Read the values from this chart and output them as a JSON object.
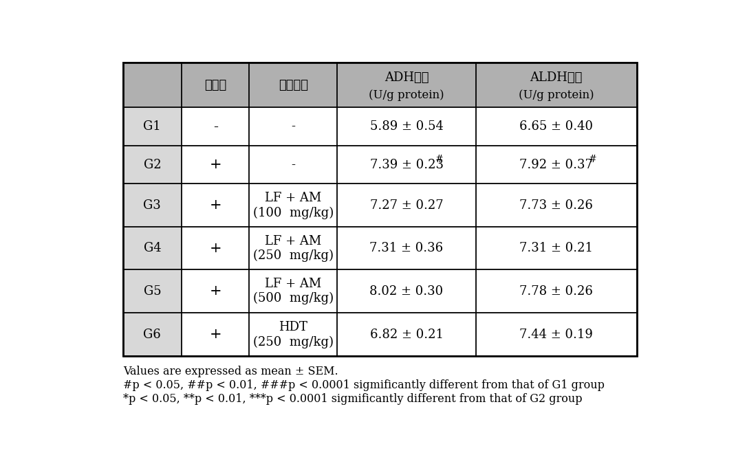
{
  "col_headers_line1": [
    "알코올",
    "시험물질",
    "ADH활성",
    "ALDH활성"
  ],
  "col_headers_line2": [
    "",
    "",
    "(U/g protein)",
    "(U/g protein)"
  ],
  "rows": [
    {
      "group": "G1",
      "alcohol": "-",
      "substance": "-",
      "adh": "5.89 ± 0.54",
      "adh_sup": "",
      "aldh": "6.65 ± 0.40",
      "aldh_sup": ""
    },
    {
      "group": "G2",
      "alcohol": "+",
      "substance": "-",
      "adh": "7.39 ± 0.23",
      "adh_sup": "#",
      "aldh": "7.92 ± 0.37",
      "aldh_sup": "#"
    },
    {
      "group": "G3",
      "alcohol": "+",
      "substance": "LF + AM\n(100  mg/kg)",
      "adh": "7.27 ± 0.27",
      "adh_sup": "",
      "aldh": "7.73 ± 0.26",
      "aldh_sup": ""
    },
    {
      "group": "G4",
      "alcohol": "+",
      "substance": "LF + AM\n(250  mg/kg)",
      "adh": "7.31 ± 0.36",
      "adh_sup": "",
      "aldh": "7.31 ± 0.21",
      "aldh_sup": ""
    },
    {
      "group": "G5",
      "alcohol": "+",
      "substance": "LF + AM\n(500  mg/kg)",
      "adh": "8.02 ± 0.30",
      "adh_sup": "",
      "aldh": "7.78 ± 0.26",
      "aldh_sup": ""
    },
    {
      "group": "G6",
      "alcohol": "+",
      "substance": "HDT\n(250  mg/kg)",
      "adh": "6.82 ± 0.21",
      "adh_sup": "",
      "aldh": "7.44 ± 0.19",
      "aldh_sup": ""
    }
  ],
  "footnotes": [
    "Values are expressed as mean ± SEM.",
    "#p < 0.05, ##p < 0.01, ###p < 0.0001 sigmificantly different from that of G1 group",
    "*p < 0.05, **p < 0.01, ***p < 0.0001 sigmificantly different from that of G2 group"
  ],
  "header_bg": "#b0b0b0",
  "col1_bg": "#d8d8d8",
  "white_bg": "#ffffff",
  "border_color": "#000000",
  "text_color": "#000000",
  "header_fontsize": 13,
  "body_fontsize": 13,
  "footnote_fontsize": 11.5
}
